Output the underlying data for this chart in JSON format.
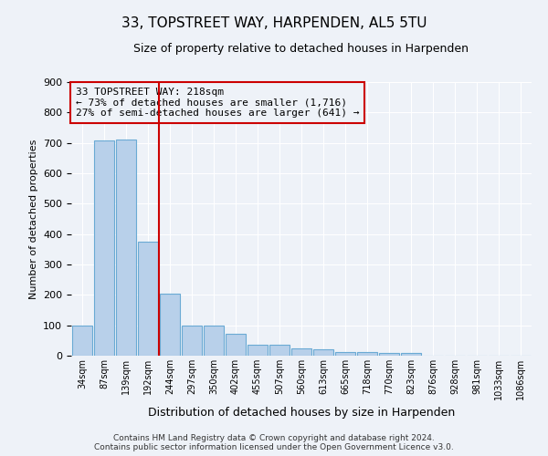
{
  "title": "33, TOPSTREET WAY, HARPENDEN, AL5 5TU",
  "subtitle": "Size of property relative to detached houses in Harpenden",
  "xlabel": "Distribution of detached houses by size in Harpenden",
  "ylabel": "Number of detached properties",
  "bar_labels": [
    "34sqm",
    "87sqm",
    "139sqm",
    "192sqm",
    "244sqm",
    "297sqm",
    "350sqm",
    "402sqm",
    "455sqm",
    "507sqm",
    "560sqm",
    "613sqm",
    "665sqm",
    "718sqm",
    "770sqm",
    "823sqm",
    "876sqm",
    "928sqm",
    "981sqm",
    "1033sqm",
    "1086sqm"
  ],
  "bar_values": [
    100,
    707,
    711,
    375,
    205,
    100,
    98,
    73,
    35,
    35,
    25,
    22,
    11,
    11,
    8,
    10,
    0,
    0,
    0,
    0,
    0
  ],
  "bar_color": "#b8d0ea",
  "bar_edgecolor": "#6aaad4",
  "vline_x": 3.5,
  "vline_color": "#cc0000",
  "annotation_text": "33 TOPSTREET WAY: 218sqm\n← 73% of detached houses are smaller (1,716)\n27% of semi-detached houses are larger (641) →",
  "annotation_box_edgecolor": "#cc0000",
  "ylim": [
    0,
    900
  ],
  "yticks": [
    0,
    100,
    200,
    300,
    400,
    500,
    600,
    700,
    800,
    900
  ],
  "footer_line1": "Contains HM Land Registry data © Crown copyright and database right 2024.",
  "footer_line2": "Contains public sector information licensed under the Open Government Licence v3.0.",
  "bg_color": "#eef2f8",
  "title_fontsize": 11,
  "subtitle_fontsize": 9,
  "ylabel_fontsize": 8,
  "xlabel_fontsize": 9,
  "tick_fontsize": 8,
  "xtick_fontsize": 7,
  "footer_fontsize": 6.5,
  "annotation_fontsize": 8
}
